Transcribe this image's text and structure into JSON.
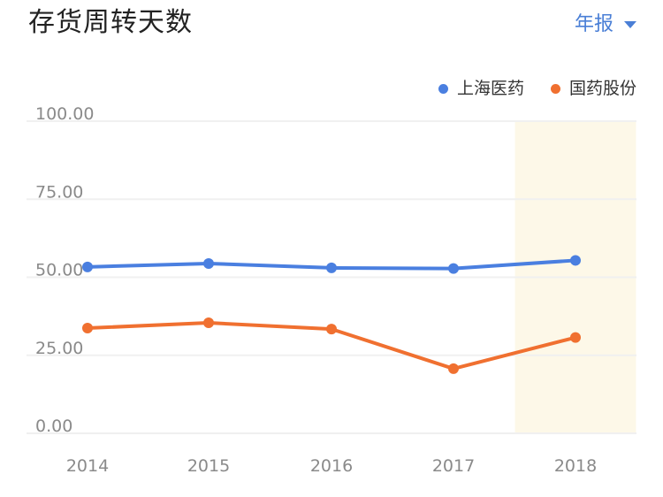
{
  "header": {
    "title": "存货周转天数",
    "period_selector": {
      "label": "年报",
      "icon": "caret-down-icon"
    }
  },
  "legend": [
    {
      "label": "上海医药",
      "color": "#4a7fe0"
    },
    {
      "label": "国药股份",
      "color": "#f07030"
    }
  ],
  "colors": {
    "series_1": "#4a7fe0",
    "series_2": "#f07030",
    "highlight_band": "#fdf8e8",
    "grid": "#f0f0f0",
    "axis_text": "#8a8a8a",
    "accent": "#4a7fd6"
  },
  "chart_data": {
    "type": "line",
    "title": "存货周转天数",
    "xlabel": "",
    "ylabel": "",
    "categories": [
      "2014",
      "2015",
      "2016",
      "2017",
      "2018"
    ],
    "series": [
      {
        "name": "上海医药",
        "values": [
          53.3,
          54.4,
          53.0,
          52.8,
          55.4
        ]
      },
      {
        "name": "国药股份",
        "values": [
          33.7,
          35.4,
          33.4,
          20.7,
          30.7
        ]
      }
    ],
    "ylim": [
      0,
      100
    ],
    "yticks": [
      "0.00",
      "25.00",
      "50.00",
      "75.00",
      "100.00"
    ],
    "grid": true,
    "legend_position": "top-right",
    "highlighted_category": "2018"
  }
}
